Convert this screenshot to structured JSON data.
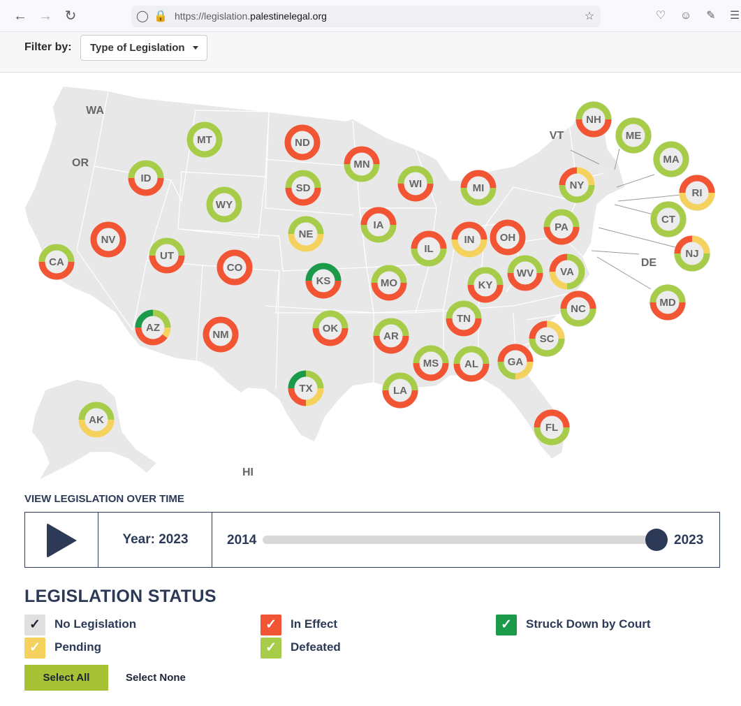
{
  "browser": {
    "url_prefix": "https://legislation.",
    "url_domain": "palestinelegal.org"
  },
  "filter": {
    "label": "Filter by:",
    "dropdown_value": "Type of Legislation"
  },
  "colors": {
    "in_effect": "#f25533",
    "defeated": "#a7cc4a",
    "pending": "#f5d15e",
    "struck_down": "#1b9b4a",
    "no_legislation": "#e0e0e0",
    "navy": "#2d3a57"
  },
  "map": {
    "plain_labels": [
      "WA",
      "OR",
      "VT",
      "DE",
      "HI"
    ],
    "states": [
      {
        "code": "MT",
        "slices": [
          [
            "defeated",
            1
          ]
        ]
      },
      {
        "code": "ND",
        "slices": [
          [
            "in_effect",
            1
          ]
        ]
      },
      {
        "code": "MN",
        "slices": [
          [
            "in_effect",
            0.5
          ],
          [
            "defeated",
            0.5
          ]
        ]
      },
      {
        "code": "ID",
        "slices": [
          [
            "defeated",
            0.5
          ],
          [
            "in_effect",
            0.5
          ]
        ]
      },
      {
        "code": "SD",
        "slices": [
          [
            "defeated",
            0.5
          ],
          [
            "in_effect",
            0.5
          ]
        ]
      },
      {
        "code": "WI",
        "slices": [
          [
            "defeated",
            0.5
          ],
          [
            "in_effect",
            0.5
          ]
        ]
      },
      {
        "code": "MI",
        "slices": [
          [
            "in_effect",
            0.5
          ],
          [
            "defeated",
            0.5
          ]
        ]
      },
      {
        "code": "WY",
        "slices": [
          [
            "defeated",
            1
          ]
        ]
      },
      {
        "code": "NE",
        "slices": [
          [
            "defeated",
            0.5
          ],
          [
            "pending",
            0.5
          ]
        ]
      },
      {
        "code": "IA",
        "slices": [
          [
            "in_effect",
            0.5
          ],
          [
            "defeated",
            0.5
          ]
        ]
      },
      {
        "code": "IL",
        "slices": [
          [
            "in_effect",
            0.5
          ],
          [
            "defeated",
            0.5
          ]
        ]
      },
      {
        "code": "IN",
        "slices": [
          [
            "in_effect",
            0.5
          ],
          [
            "pending",
            0.5
          ]
        ]
      },
      {
        "code": "OH",
        "slices": [
          [
            "in_effect",
            1
          ]
        ]
      },
      {
        "code": "NV",
        "slices": [
          [
            "in_effect",
            1
          ]
        ]
      },
      {
        "code": "UT",
        "slices": [
          [
            "defeated",
            0.5
          ],
          [
            "in_effect",
            0.5
          ]
        ]
      },
      {
        "code": "CO",
        "slices": [
          [
            "in_effect",
            1
          ]
        ]
      },
      {
        "code": "CA",
        "slices": [
          [
            "defeated",
            0.5
          ],
          [
            "in_effect",
            0.5
          ]
        ]
      },
      {
        "code": "KS",
        "slices": [
          [
            "struck_down",
            0.5
          ],
          [
            "in_effect",
            0.5
          ]
        ]
      },
      {
        "code": "MO",
        "slices": [
          [
            "defeated",
            0.5
          ],
          [
            "in_effect",
            0.5
          ]
        ]
      },
      {
        "code": "KY",
        "slices": [
          [
            "defeated",
            0.5
          ],
          [
            "in_effect",
            0.5
          ]
        ]
      },
      {
        "code": "WV",
        "slices": [
          [
            "defeated",
            0.5
          ],
          [
            "in_effect",
            0.5
          ]
        ]
      },
      {
        "code": "VA",
        "slices": [
          [
            "in_effect",
            0.25
          ],
          [
            "defeated",
            0.5
          ],
          [
            "pending",
            0.25
          ]
        ]
      },
      {
        "code": "PA",
        "slices": [
          [
            "defeated",
            0.5
          ],
          [
            "in_effect",
            0.5
          ]
        ]
      },
      {
        "code": "NY",
        "slices": [
          [
            "in_effect",
            0.25
          ],
          [
            "pending",
            0.25
          ],
          [
            "defeated",
            0.5
          ]
        ]
      },
      {
        "code": "NH",
        "slices": [
          [
            "defeated",
            0.5
          ],
          [
            "in_effect",
            0.5
          ]
        ]
      },
      {
        "code": "ME",
        "slices": [
          [
            "defeated",
            1
          ]
        ]
      },
      {
        "code": "MA",
        "slices": [
          [
            "defeated",
            1
          ]
        ]
      },
      {
        "code": "RI",
        "slices": [
          [
            "in_effect",
            0.5
          ],
          [
            "pending",
            0.5
          ]
        ]
      },
      {
        "code": "CT",
        "slices": [
          [
            "defeated",
            1
          ]
        ]
      },
      {
        "code": "NJ",
        "slices": [
          [
            "in_effect",
            0.25
          ],
          [
            "pending",
            0.25
          ],
          [
            "defeated",
            0.5
          ]
        ]
      },
      {
        "code": "MD",
        "slices": [
          [
            "defeated",
            0.5
          ],
          [
            "in_effect",
            0.5
          ]
        ]
      },
      {
        "code": "NC",
        "slices": [
          [
            "in_effect",
            0.5
          ],
          [
            "defeated",
            0.5
          ]
        ]
      },
      {
        "code": "SC",
        "slices": [
          [
            "in_effect",
            0.25
          ],
          [
            "pending",
            0.25
          ],
          [
            "defeated",
            0.5
          ]
        ]
      },
      {
        "code": "GA",
        "slices": [
          [
            "in_effect",
            0.5
          ],
          [
            "pending",
            0.25
          ],
          [
            "defeated",
            0.25
          ]
        ]
      },
      {
        "code": "AL",
        "slices": [
          [
            "defeated",
            0.5
          ],
          [
            "in_effect",
            0.5
          ]
        ]
      },
      {
        "code": "MS",
        "slices": [
          [
            "defeated",
            0.5
          ],
          [
            "in_effect",
            0.5
          ]
        ]
      },
      {
        "code": "TN",
        "slices": [
          [
            "defeated",
            0.5
          ],
          [
            "in_effect",
            0.5
          ]
        ]
      },
      {
        "code": "AR",
        "slices": [
          [
            "defeated",
            0.5
          ],
          [
            "in_effect",
            0.5
          ]
        ]
      },
      {
        "code": "LA",
        "slices": [
          [
            "defeated",
            0.5
          ],
          [
            "in_effect",
            0.5
          ]
        ]
      },
      {
        "code": "OK",
        "slices": [
          [
            "defeated",
            0.5
          ],
          [
            "in_effect",
            0.5
          ]
        ]
      },
      {
        "code": "AZ",
        "slices": [
          [
            "struck_down",
            0.25
          ],
          [
            "defeated",
            0.25
          ],
          [
            "pending",
            0.1
          ],
          [
            "in_effect",
            0.4
          ]
        ]
      },
      {
        "code": "NM",
        "slices": [
          [
            "in_effect",
            1
          ]
        ]
      },
      {
        "code": "TX",
        "slices": [
          [
            "struck_down",
            0.25
          ],
          [
            "defeated",
            0.25
          ],
          [
            "pending",
            0.25
          ],
          [
            "in_effect",
            0.25
          ]
        ]
      },
      {
        "code": "FL",
        "slices": [
          [
            "in_effect",
            0.5
          ],
          [
            "defeated",
            0.5
          ]
        ]
      },
      {
        "code": "AK",
        "slices": [
          [
            "defeated",
            0.5
          ],
          [
            "pending",
            0.5
          ]
        ]
      }
    ]
  },
  "timeline": {
    "heading": "VIEW LEGISLATION OVER TIME",
    "year_label": "Year: 2023",
    "start_year": "2014",
    "end_year": "2023",
    "slider_value_fraction": 1.0
  },
  "status": {
    "title": "LEGISLATION STATUS",
    "items": [
      {
        "key": "no_legislation",
        "label": "No Legislation"
      },
      {
        "key": "in_effect",
        "label": "In Effect"
      },
      {
        "key": "struck_down",
        "label": "Struck Down by Court"
      },
      {
        "key": "pending",
        "label": "Pending"
      },
      {
        "key": "defeated",
        "label": "Defeated"
      }
    ],
    "select_all": "Select All",
    "select_none": "Select None"
  }
}
